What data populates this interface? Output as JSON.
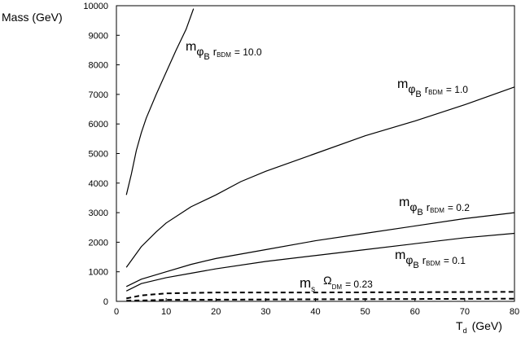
{
  "chart_data": {
    "type": "line",
    "ylabel": "Mass (GeV)",
    "xlabel": [
      "T",
      "d",
      "(GeV)"
    ],
    "xlim": [
      0,
      80
    ],
    "xticks": [
      0,
      10,
      20,
      30,
      40,
      50,
      60,
      70,
      80
    ],
    "ylim": [
      0,
      10000
    ],
    "yticks": [
      0,
      1000,
      2000,
      3000,
      4000,
      5000,
      6000,
      7000,
      8000,
      9000,
      10000
    ],
    "series": [
      {
        "color": "#000000",
        "dashed": false,
        "x": [
          2,
          3,
          4,
          5,
          6,
          8,
          10,
          12,
          14,
          15.5
        ],
        "values": [
          3600,
          4300,
          5100,
          5700,
          6200,
          7000,
          7750,
          8500,
          9200,
          9900
        ]
      },
      {
        "color": "#000000",
        "dashed": false,
        "x": [
          2,
          5,
          8,
          10,
          15,
          20,
          25,
          30,
          40,
          50,
          60,
          70,
          80
        ],
        "values": [
          1150,
          1850,
          2350,
          2650,
          3200,
          3600,
          4050,
          4400,
          5000,
          5600,
          6100,
          6650,
          7250
        ]
      },
      {
        "color": "#000000",
        "dashed": false,
        "x": [
          2,
          5,
          10,
          15,
          20,
          30,
          40,
          50,
          60,
          70,
          80
        ],
        "values": [
          500,
          750,
          1000,
          1250,
          1450,
          1750,
          2050,
          2300,
          2550,
          2800,
          3000
        ]
      },
      {
        "color": "#000000",
        "dashed": false,
        "x": [
          2,
          5,
          10,
          15,
          20,
          30,
          40,
          50,
          60,
          70,
          80
        ],
        "values": [
          350,
          600,
          800,
          950,
          1100,
          1350,
          1550,
          1750,
          1950,
          2150,
          2300
        ]
      },
      {
        "color": "#000000",
        "dashed": true,
        "x": [
          2,
          5,
          10,
          20,
          40,
          60,
          80
        ],
        "values": [
          100,
          200,
          270,
          300,
          300,
          310,
          320
        ]
      },
      {
        "color": "#000000",
        "dashed": true,
        "x": [
          2,
          10,
          40,
          80
        ],
        "values": [
          20,
          50,
          70,
          90
        ]
      }
    ],
    "annotations": [
      [
        "m",
        "φ",
        "B",
        "r",
        "BDM",
        "= 10.0"
      ],
      [
        "m",
        "φ",
        "B",
        "r",
        "BDM",
        "= 1.0"
      ],
      [
        "m",
        "φ",
        "B",
        "r",
        "BDM",
        "= 0.2"
      ],
      [
        "m",
        "φ",
        "B",
        "r",
        "BDM",
        "= 0.1"
      ],
      [
        "m",
        "s",
        "Ω",
        "DM",
        "= 0.23"
      ]
    ]
  }
}
